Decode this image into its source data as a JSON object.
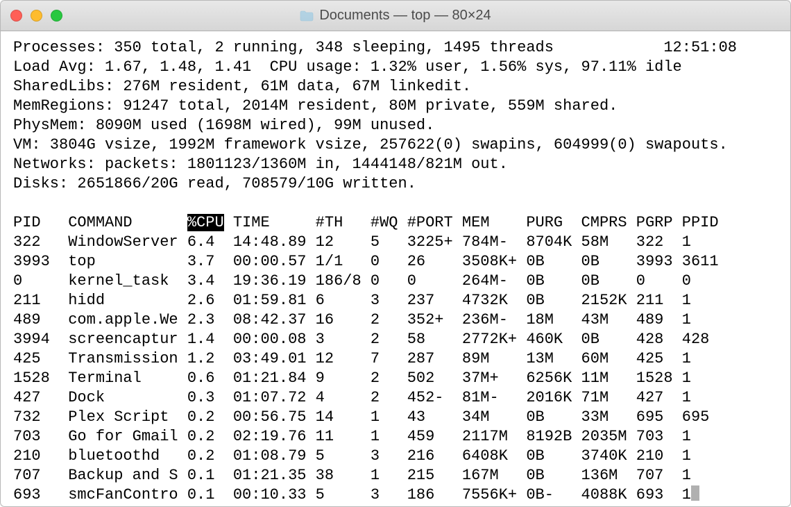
{
  "window": {
    "title": "Documents — top — 80×24"
  },
  "header_lines": [
    "Processes: 350 total, 2 running, 348 sleeping, 1495 threads            12:51:08",
    "Load Avg: 1.67, 1.48, 1.41  CPU usage: 1.32% user, 1.56% sys, 97.11% idle",
    "SharedLibs: 276M resident, 61M data, 67M linkedit.",
    "MemRegions: 91247 total, 2014M resident, 80M private, 559M shared.",
    "PhysMem: 8090M used (1698M wired), 99M unused.",
    "VM: 3804G vsize, 1992M framework vsize, 257622(0) swapins, 604999(0) swapouts.",
    "Networks: packets: 1801123/1360M in, 1444148/821M out.",
    "Disks: 2651866/20G read, 708579/10G written."
  ],
  "cols": {
    "pid": "PID",
    "command": "COMMAND",
    "cpu": "%CPU",
    "time": "TIME",
    "th": "#TH",
    "wq": "#WQ",
    "port": "#PORT",
    "mem": "MEM",
    "purg": "PURG",
    "cmprs": "CMPRS",
    "pgrp": "PGRP",
    "ppid": "PPID"
  },
  "rows": [
    {
      "pid": "322",
      "command": "WindowServer",
      "cpu": "6.4",
      "time": "14:48.89",
      "th": "12",
      "wq": "5",
      "port": "3225+",
      "mem": "784M-",
      "purg": "8704K",
      "cmprs": "58M",
      "pgrp": "322",
      "ppid": "1"
    },
    {
      "pid": "3993",
      "command": "top",
      "cpu": "3.7",
      "time": "00:00.57",
      "th": "1/1",
      "wq": "0",
      "port": "26",
      "mem": "3508K+",
      "purg": "0B",
      "cmprs": "0B",
      "pgrp": "3993",
      "ppid": "3611"
    },
    {
      "pid": "0",
      "command": "kernel_task",
      "cpu": "3.4",
      "time": "19:36.19",
      "th": "186/8",
      "wq": "0",
      "port": "0",
      "mem": "264M-",
      "purg": "0B",
      "cmprs": "0B",
      "pgrp": "0",
      "ppid": "0"
    },
    {
      "pid": "211",
      "command": "hidd",
      "cpu": "2.6",
      "time": "01:59.81",
      "th": "6",
      "wq": "3",
      "port": "237",
      "mem": "4732K",
      "purg": "0B",
      "cmprs": "2152K",
      "pgrp": "211",
      "ppid": "1"
    },
    {
      "pid": "489",
      "command": "com.apple.We",
      "cpu": "2.3",
      "time": "08:42.37",
      "th": "16",
      "wq": "2",
      "port": "352+",
      "mem": "236M-",
      "purg": "18M",
      "cmprs": "43M",
      "pgrp": "489",
      "ppid": "1"
    },
    {
      "pid": "3994",
      "command": "screencaptur",
      "cpu": "1.4",
      "time": "00:00.08",
      "th": "3",
      "wq": "2",
      "port": "58",
      "mem": "2772K+",
      "purg": "460K",
      "cmprs": "0B",
      "pgrp": "428",
      "ppid": "428"
    },
    {
      "pid": "425",
      "command": "Transmission",
      "cpu": "1.2",
      "time": "03:49.01",
      "th": "12",
      "wq": "7",
      "port": "287",
      "mem": "89M",
      "purg": "13M",
      "cmprs": "60M",
      "pgrp": "425",
      "ppid": "1"
    },
    {
      "pid": "1528",
      "command": "Terminal",
      "cpu": "0.6",
      "time": "01:21.84",
      "th": "9",
      "wq": "2",
      "port": "502",
      "mem": "37M+",
      "purg": "6256K",
      "cmprs": "11M",
      "pgrp": "1528",
      "ppid": "1"
    },
    {
      "pid": "427",
      "command": "Dock",
      "cpu": "0.3",
      "time": "01:07.72",
      "th": "4",
      "wq": "2",
      "port": "452-",
      "mem": "81M-",
      "purg": "2016K",
      "cmprs": "71M",
      "pgrp": "427",
      "ppid": "1"
    },
    {
      "pid": "732",
      "command": "Plex Script",
      "cpu": "0.2",
      "time": "00:56.75",
      "th": "14",
      "wq": "1",
      "port": "43",
      "mem": "34M",
      "purg": "0B",
      "cmprs": "33M",
      "pgrp": "695",
      "ppid": "695"
    },
    {
      "pid": "703",
      "command": "Go for Gmail",
      "cpu": "0.2",
      "time": "02:19.76",
      "th": "11",
      "wq": "1",
      "port": "459",
      "mem": "2117M",
      "purg": "8192B",
      "cmprs": "2035M",
      "pgrp": "703",
      "ppid": "1"
    },
    {
      "pid": "210",
      "command": "bluetoothd",
      "cpu": "0.2",
      "time": "01:08.79",
      "th": "5",
      "wq": "3",
      "port": "216",
      "mem": "6408K",
      "purg": "0B",
      "cmprs": "3740K",
      "pgrp": "210",
      "ppid": "1"
    },
    {
      "pid": "707",
      "command": "Backup and S",
      "cpu": "0.1",
      "time": "01:21.35",
      "th": "38",
      "wq": "1",
      "port": "215",
      "mem": "167M",
      "purg": "0B",
      "cmprs": "136M",
      "pgrp": "707",
      "ppid": "1"
    },
    {
      "pid": "693",
      "command": "smcFanContro",
      "cpu": "0.1",
      "time": "00:10.33",
      "th": "5",
      "wq": "3",
      "port": "186",
      "mem": "7556K+",
      "purg": "0B-",
      "cmprs": "4088K",
      "pgrp": "693",
      "ppid": "1"
    }
  ],
  "col_widths": {
    "pid": 5,
    "command": 12,
    "cpu": 4,
    "time": 8,
    "th": 5,
    "wq": 3,
    "port": 5,
    "mem": 6,
    "purg": 5,
    "cmprs": 5,
    "pgrp": 4,
    "ppid": 4
  }
}
